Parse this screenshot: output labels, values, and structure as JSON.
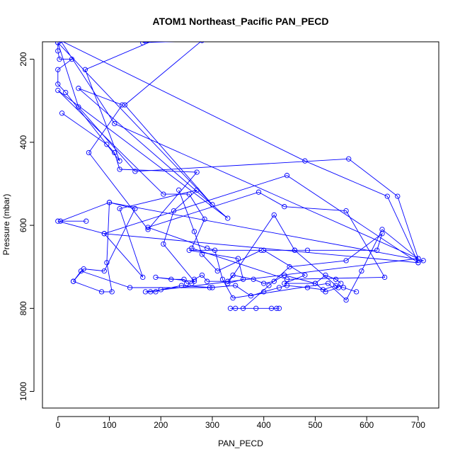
{
  "chart_data": {
    "type": "line",
    "title": "ATOM1 Northeast_Pacific PAN_PECD",
    "xlabel": "PAN_PECD",
    "ylabel": "Pressure (mbar)",
    "xlim": [
      -30,
      740
    ],
    "ylim": [
      1040,
      158
    ],
    "y_inverted": true,
    "x_ticks": [
      0,
      100,
      200,
      300,
      400,
      500,
      600,
      700
    ],
    "x_tick_labels": [
      "0",
      "100",
      "200",
      "300",
      "400",
      "500",
      "600",
      "700"
    ],
    "y_ticks": [
      200,
      400,
      600,
      800,
      1000
    ],
    "y_tick_labels": [
      "200",
      "400",
      "600",
      "800",
      "1000"
    ],
    "grid": false,
    "legend": "none",
    "marker": "open-circle",
    "line_color": "#0000ff",
    "series": [
      {
        "x": [
          0,
          0,
          3,
          27,
          0,
          0,
          15,
          120,
          53,
          195,
          165,
          280,
          130,
          300,
          0,
          40,
          150,
          565,
          660,
          700,
          110,
          5,
          480,
          640,
          700,
          90,
          445,
          700,
          710,
          100,
          5,
          55
        ],
        "y": [
          160,
          180,
          200,
          200,
          225,
          260,
          280,
          445,
          225,
          150,
          160,
          155,
          310,
          550,
          160,
          315,
          470,
          440,
          530,
          680,
          355,
          155,
          445,
          530,
          690,
          620,
          480,
          690,
          685,
          545,
          590,
          590
        ]
      },
      {
        "x": [
          8,
          95,
          110,
          120,
          270,
          175,
          60,
          125,
          40,
          330,
          0,
          205,
          255,
          285,
          260,
          445,
          635,
          560,
          440,
          390,
          175,
          290,
          305,
          320,
          340,
          525,
          560,
          590,
          630,
          700,
          170,
          180,
          190,
          200,
          240,
          300
        ],
        "y": [
          330,
          405,
          425,
          465,
          472,
          610,
          425,
          310,
          270,
          583,
          275,
          525,
          525,
          585,
          655,
          730,
          725,
          565,
          555,
          520,
          605,
          655,
          660,
          730,
          775,
          740,
          780,
          710,
          610,
          680,
          760,
          760,
          760,
          755,
          745,
          750
        ]
      },
      {
        "x": [
          235,
          265,
          280,
          310,
          395,
          255,
          350,
          360,
          330,
          420,
          460,
          545,
          520,
          500,
          440,
          480,
          400,
          460,
          485,
          620,
          630,
          560,
          450,
          410,
          360,
          335,
          345,
          385,
          415,
          425,
          430
        ],
        "y": [
          515,
          615,
          670,
          710,
          660,
          660,
          680,
          730,
          740,
          575,
          660,
          750,
          760,
          740,
          740,
          720,
          660,
          660,
          660,
          660,
          620,
          685,
          700,
          745,
          800,
          800,
          800,
          800,
          800,
          800,
          800
        ]
      },
      {
        "x": [
          0,
          90,
          165,
          120,
          270,
          225,
          205,
          265,
          190,
          220,
          245,
          250,
          260,
          265,
          280,
          290,
          330,
          340,
          380,
          400,
          420,
          440,
          500,
          520,
          540,
          550
        ],
        "y": [
          590,
          620,
          725,
          560,
          515,
          565,
          645,
          735,
          725,
          730,
          730,
          740,
          740,
          730,
          720,
          735,
          735,
          720,
          730,
          740,
          735,
          720,
          740,
          720,
          730,
          740
        ]
      },
      {
        "x": [
          30,
          85,
          105,
          95,
          100,
          150,
          90,
          50,
          30,
          45,
          140,
          295,
          345,
          375,
          400,
          430,
          445,
          485,
          515,
          540,
          555,
          580
        ],
        "y": [
          735,
          760,
          760,
          690,
          545,
          560,
          710,
          705,
          735,
          710,
          750,
          750,
          745,
          770,
          760,
          750,
          745,
          750,
          755,
          745,
          750,
          760
        ]
      }
    ]
  }
}
